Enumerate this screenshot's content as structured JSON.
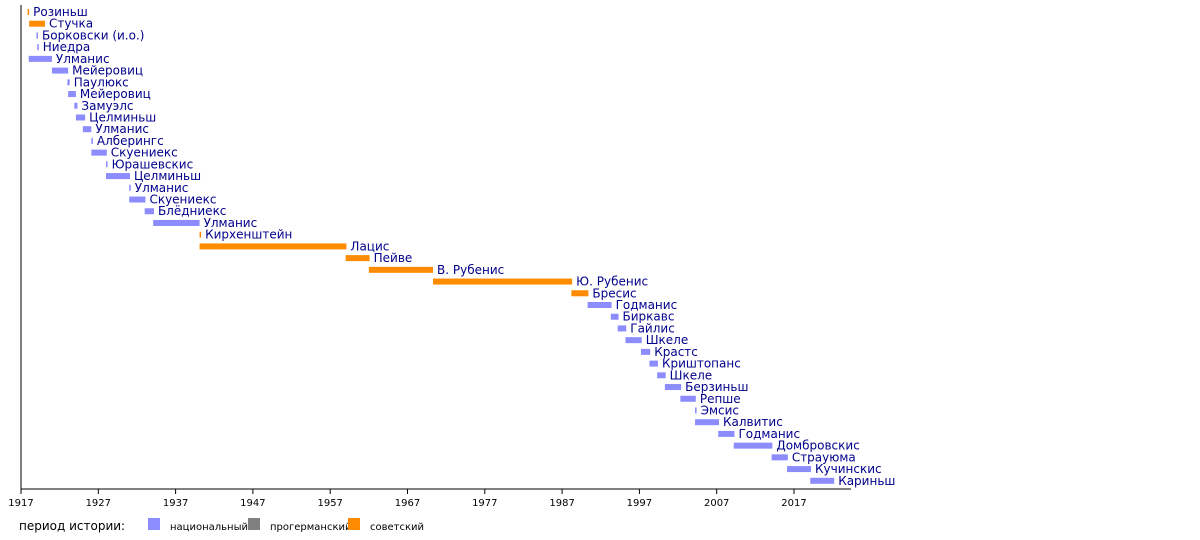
{
  "chart_data": {
    "type": "timeline",
    "xlim": [
      1917,
      2028
    ],
    "x_ticks": [
      1917,
      1927,
      1937,
      1947,
      1957,
      1967,
      1977,
      1987,
      1997,
      2007,
      2017
    ],
    "colors": {
      "national": "#8c8cff",
      "progerman": "#808080",
      "soviet": "#ff8c00"
    },
    "legend": {
      "title": "период истории:",
      "items": [
        {
          "key": "national",
          "label": "национальный"
        },
        {
          "key": "progerman",
          "label": "прогерманский"
        },
        {
          "key": "soviet",
          "label": "советский"
        }
      ]
    },
    "bars": [
      {
        "label": "Розиньш",
        "start": 1917.85,
        "end": 1918.05,
        "period": "soviet"
      },
      {
        "label": "Стучка",
        "start": 1918.05,
        "end": 1920.1,
        "period": "soviet"
      },
      {
        "label": "Борковски (и.о.)",
        "start": 1919.0,
        "end": 1919.2,
        "period": "national"
      },
      {
        "label": "Ниедра",
        "start": 1919.1,
        "end": 1919.3,
        "period": "national"
      },
      {
        "label": "Улманис",
        "start": 1918.0,
        "end": 1921.0,
        "period": "national"
      },
      {
        "label": "Мейеровиц",
        "start": 1921.0,
        "end": 1923.1,
        "period": "national"
      },
      {
        "label": "Паулюкс",
        "start": 1923.0,
        "end": 1923.3,
        "period": "national"
      },
      {
        "label": "Мейеровиц",
        "start": 1923.1,
        "end": 1924.1,
        "period": "national"
      },
      {
        "label": "Замуэлс",
        "start": 1923.9,
        "end": 1924.3,
        "period": "national"
      },
      {
        "label": "Целминьш",
        "start": 1924.1,
        "end": 1925.3,
        "period": "national"
      },
      {
        "label": "Улманис",
        "start": 1925.0,
        "end": 1926.1,
        "period": "national"
      },
      {
        "label": "Алберингс",
        "start": 1926.1,
        "end": 1926.3,
        "period": "national"
      },
      {
        "label": "Скуениекс",
        "start": 1926.1,
        "end": 1928.1,
        "period": "national"
      },
      {
        "label": "Юрашевскис",
        "start": 1928.0,
        "end": 1928.2,
        "period": "national"
      },
      {
        "label": "Целминьш",
        "start": 1928.0,
        "end": 1931.1,
        "period": "national"
      },
      {
        "label": "Улманис",
        "start": 1931.0,
        "end": 1931.2,
        "period": "national"
      },
      {
        "label": "Скуениекс",
        "start": 1931.0,
        "end": 1933.1,
        "period": "national"
      },
      {
        "label": "Блёдниекс",
        "start": 1933.0,
        "end": 1934.2,
        "period": "national"
      },
      {
        "label": "Улманис",
        "start": 1934.1,
        "end": 1940.1,
        "period": "national"
      },
      {
        "label": "Кирхенштейн",
        "start": 1940.1,
        "end": 1940.3,
        "period": "soviet"
      },
      {
        "label": "Лацис",
        "start": 1940.1,
        "end": 1959.1,
        "period": "soviet"
      },
      {
        "label": "Пейве",
        "start": 1959.0,
        "end": 1962.1,
        "period": "soviet"
      },
      {
        "label": "В. Рубенис",
        "start": 1962.0,
        "end": 1970.3,
        "period": "soviet"
      },
      {
        "label": "Ю. Рубенис",
        "start": 1970.3,
        "end": 1988.3,
        "period": "soviet"
      },
      {
        "label": "Бресис",
        "start": 1988.2,
        "end": 1990.4,
        "period": "soviet"
      },
      {
        "label": "Годманис",
        "start": 1990.3,
        "end": 1993.4,
        "period": "national"
      },
      {
        "label": "Биркавс",
        "start": 1993.3,
        "end": 1994.3,
        "period": "national"
      },
      {
        "label": "Гайлис",
        "start": 1994.2,
        "end": 1995.3,
        "period": "national"
      },
      {
        "label": "Шкеле",
        "start": 1995.2,
        "end": 1997.3,
        "period": "national"
      },
      {
        "label": "Крастс",
        "start": 1997.2,
        "end": 1998.4,
        "period": "national"
      },
      {
        "label": "Криштопанс",
        "start": 1998.3,
        "end": 1999.4,
        "period": "national"
      },
      {
        "label": "Шкеле",
        "start": 1999.3,
        "end": 2000.4,
        "period": "national"
      },
      {
        "label": "Берзиньш",
        "start": 2000.3,
        "end": 2002.4,
        "period": "national"
      },
      {
        "label": "Репше",
        "start": 2002.3,
        "end": 2004.3,
        "period": "national"
      },
      {
        "label": "Эмсис",
        "start": 2004.2,
        "end": 2004.4,
        "period": "national"
      },
      {
        "label": "Калвитис",
        "start": 2004.2,
        "end": 2007.3,
        "period": "national"
      },
      {
        "label": "Годманис",
        "start": 2007.2,
        "end": 2009.3,
        "period": "national"
      },
      {
        "label": "Домбровскис",
        "start": 2009.2,
        "end": 2014.2,
        "period": "national"
      },
      {
        "label": "Страуюма",
        "start": 2014.1,
        "end": 2016.2,
        "period": "national"
      },
      {
        "label": "Кучинскис",
        "start": 2016.1,
        "end": 2019.2,
        "period": "national"
      },
      {
        "label": "Кариньш",
        "start": 2019.1,
        "end": 2022.2,
        "period": "national"
      }
    ]
  }
}
